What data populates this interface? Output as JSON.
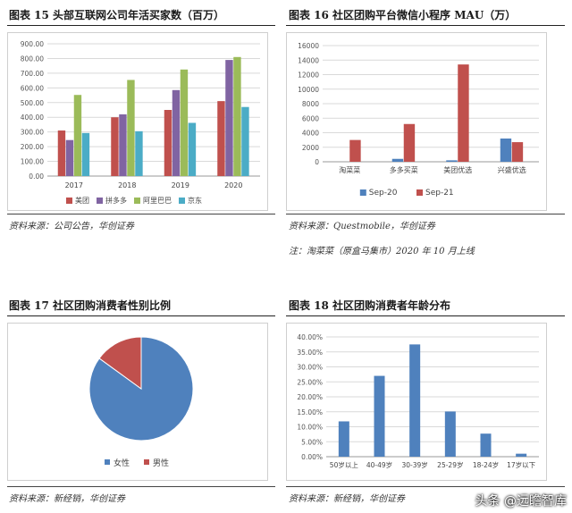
{
  "panels": {
    "p15": {
      "title": "图表 15   头部互联网公司年活买家数（百万）",
      "source": "资料来源：公司公告，华创证券"
    },
    "p16": {
      "title": "图表 16   社区团购平台微信小程序 MAU（万）",
      "source": "资料来源：Questmobile，华创证券",
      "note": "注：淘菜菜（原盒马集市）2020 年 10 月上线"
    },
    "p17": {
      "title": "图表 17   社区团购消费者性别比例",
      "source": "资料来源：新经销，华创证券"
    },
    "p18": {
      "title": "图表 18   社区团购消费者年龄分布",
      "source": "资料来源：新经销，华创证券"
    }
  },
  "watermark": "头条 @远瞻智库",
  "colors": {
    "meituan": "#c0504d",
    "pdd": "#8064a2",
    "alibaba": "#9bbb59",
    "jd": "#4bacc6",
    "sep20": "#4f81bd",
    "sep21": "#c0504d",
    "female": "#4f81bd",
    "male": "#c0504d",
    "age": "#4f81bd"
  },
  "chart_data": [
    {
      "id": "c15",
      "type": "bar",
      "categories": [
        "2017",
        "2018",
        "2019",
        "2020"
      ],
      "series": [
        {
          "name": "美团",
          "values": [
            310,
            400,
            450,
            510
          ]
        },
        {
          "name": "拼多多",
          "values": [
            245,
            420,
            585,
            790
          ]
        },
        {
          "name": "阿里巴巴",
          "values": [
            552,
            654,
            725,
            810
          ]
        },
        {
          "name": "京东",
          "values": [
            293,
            305,
            362,
            470
          ]
        }
      ],
      "yticks": [
        "0.00",
        "100.00",
        "200.00",
        "300.00",
        "400.00",
        "500.00",
        "600.00",
        "700.00",
        "800.00",
        "900.00"
      ],
      "ylim": [
        0,
        900
      ],
      "legend": "bottom",
      "grid": true
    },
    {
      "id": "c16",
      "type": "bar",
      "categories": [
        "淘菜菜",
        "多多买菜",
        "美团优选",
        "兴盛优选"
      ],
      "series": [
        {
          "name": "Sep-20",
          "values": [
            0,
            400,
            200,
            3200
          ]
        },
        {
          "name": "Sep-21",
          "values": [
            3000,
            5200,
            13400,
            2700
          ]
        }
      ],
      "yticks": [
        "0",
        "2000",
        "4000",
        "6000",
        "8000",
        "10000",
        "12000",
        "14000",
        "16000"
      ],
      "ylim": [
        0,
        16000
      ],
      "legend": "bottom",
      "grid": true
    },
    {
      "id": "c17",
      "type": "pie",
      "labels": [
        "女性",
        "男性"
      ],
      "values": [
        85,
        15
      ],
      "legend": "bottom"
    },
    {
      "id": "c18",
      "type": "bar",
      "categories": [
        "50岁以上",
        "40-49岁",
        "30-39岁",
        "25-29岁",
        "18-24岁",
        "17岁以下"
      ],
      "values": [
        11.8,
        27.0,
        37.5,
        15.1,
        7.7,
        1.0
      ],
      "yticks": [
        "0.00%",
        "5.00%",
        "10.00%",
        "15.00%",
        "20.00%",
        "25.00%",
        "30.00%",
        "35.00%",
        "40.00%"
      ],
      "ylim": [
        0,
        40
      ],
      "grid": true
    }
  ]
}
